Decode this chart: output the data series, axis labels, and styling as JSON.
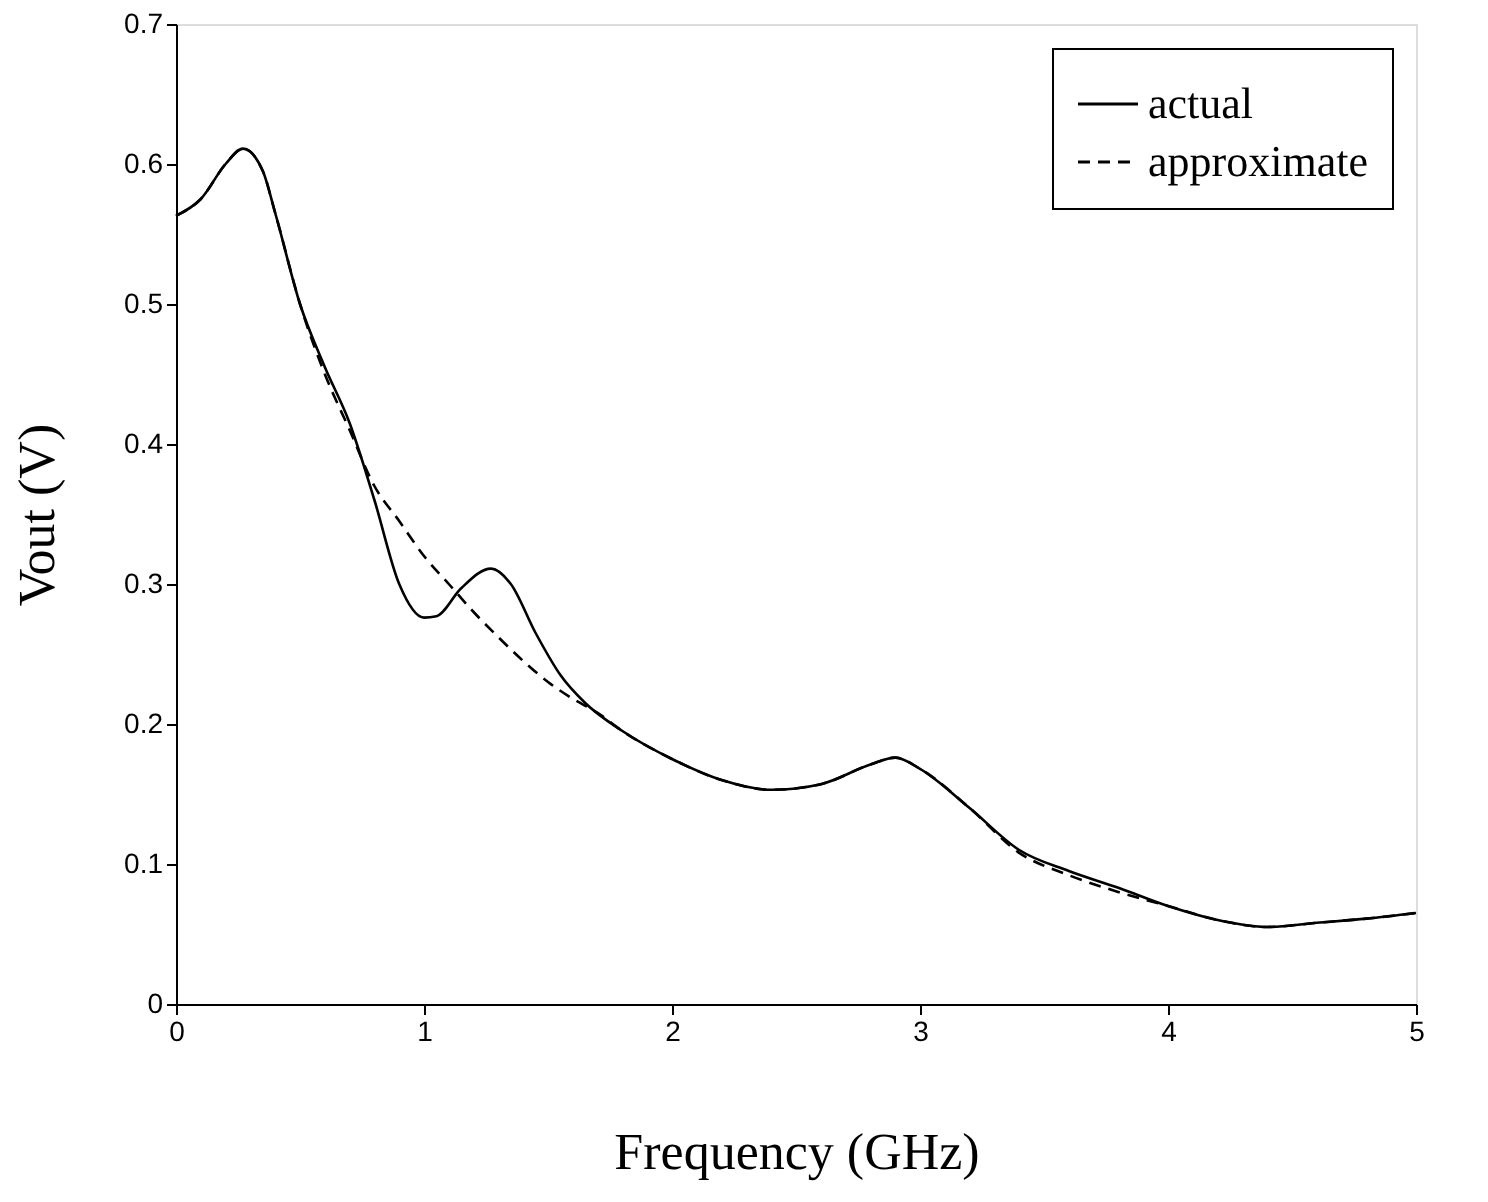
{
  "chart_data": {
    "type": "line",
    "xlabel": "Frequency (GHz)",
    "ylabel": "Vout (V)",
    "xlim": [
      0,
      5
    ],
    "xticks": [
      0,
      1,
      2,
      3,
      4,
      5
    ],
    "ylim": [
      0,
      0.7
    ],
    "yticks": [
      0,
      0.1,
      0.2,
      0.3,
      0.4,
      0.5,
      0.6,
      0.7
    ],
    "grid": false,
    "legend": "top right",
    "marker": "none",
    "series": [
      {
        "name": "actual",
        "color": "#000000",
        "line_style": "solid",
        "x": [
          0,
          0.1,
          0.2,
          0.27,
          0.35,
          0.4,
          0.5,
          0.6,
          0.7,
          0.8,
          0.9,
          1.0,
          1.05,
          1.15,
          1.27,
          1.35,
          1.45,
          1.55,
          1.65,
          1.8,
          2.0,
          2.2,
          2.4,
          2.6,
          2.8,
          2.9,
          3.0,
          3.2,
          3.4,
          3.6,
          3.8,
          4.0,
          4.2,
          4.4,
          4.6,
          4.8,
          5.0
        ],
        "values": [
          0.563,
          0.575,
          0.6,
          0.611,
          0.595,
          0.565,
          0.5,
          0.455,
          0.415,
          0.36,
          0.3,
          0.276,
          0.277,
          0.297,
          0.311,
          0.3,
          0.265,
          0.235,
          0.215,
          0.195,
          0.175,
          0.16,
          0.153,
          0.157,
          0.171,
          0.176,
          0.168,
          0.14,
          0.11,
          0.095,
          0.083,
          0.07,
          0.06,
          0.055,
          0.058,
          0.061,
          0.065
        ]
      },
      {
        "name": "approximate",
        "color": "#000000",
        "line_style": "dashed",
        "x": [
          0,
          0.1,
          0.2,
          0.27,
          0.35,
          0.4,
          0.5,
          0.6,
          0.7,
          0.8,
          0.9,
          1.0,
          1.1,
          1.2,
          1.3,
          1.4,
          1.5,
          1.6,
          1.7,
          1.8,
          2.0,
          2.2,
          2.4,
          2.6,
          2.8,
          2.9,
          3.0,
          3.2,
          3.4,
          3.6,
          3.8,
          4.0,
          4.2,
          4.4,
          4.6,
          4.8,
          5.0
        ],
        "values": [
          0.563,
          0.575,
          0.6,
          0.611,
          0.595,
          0.565,
          0.5,
          0.45,
          0.41,
          0.37,
          0.345,
          0.32,
          0.3,
          0.28,
          0.262,
          0.245,
          0.23,
          0.218,
          0.208,
          0.195,
          0.175,
          0.16,
          0.153,
          0.157,
          0.171,
          0.176,
          0.168,
          0.14,
          0.108,
          0.092,
          0.08,
          0.07,
          0.06,
          0.055,
          0.058,
          0.061,
          0.065
        ]
      }
    ]
  }
}
